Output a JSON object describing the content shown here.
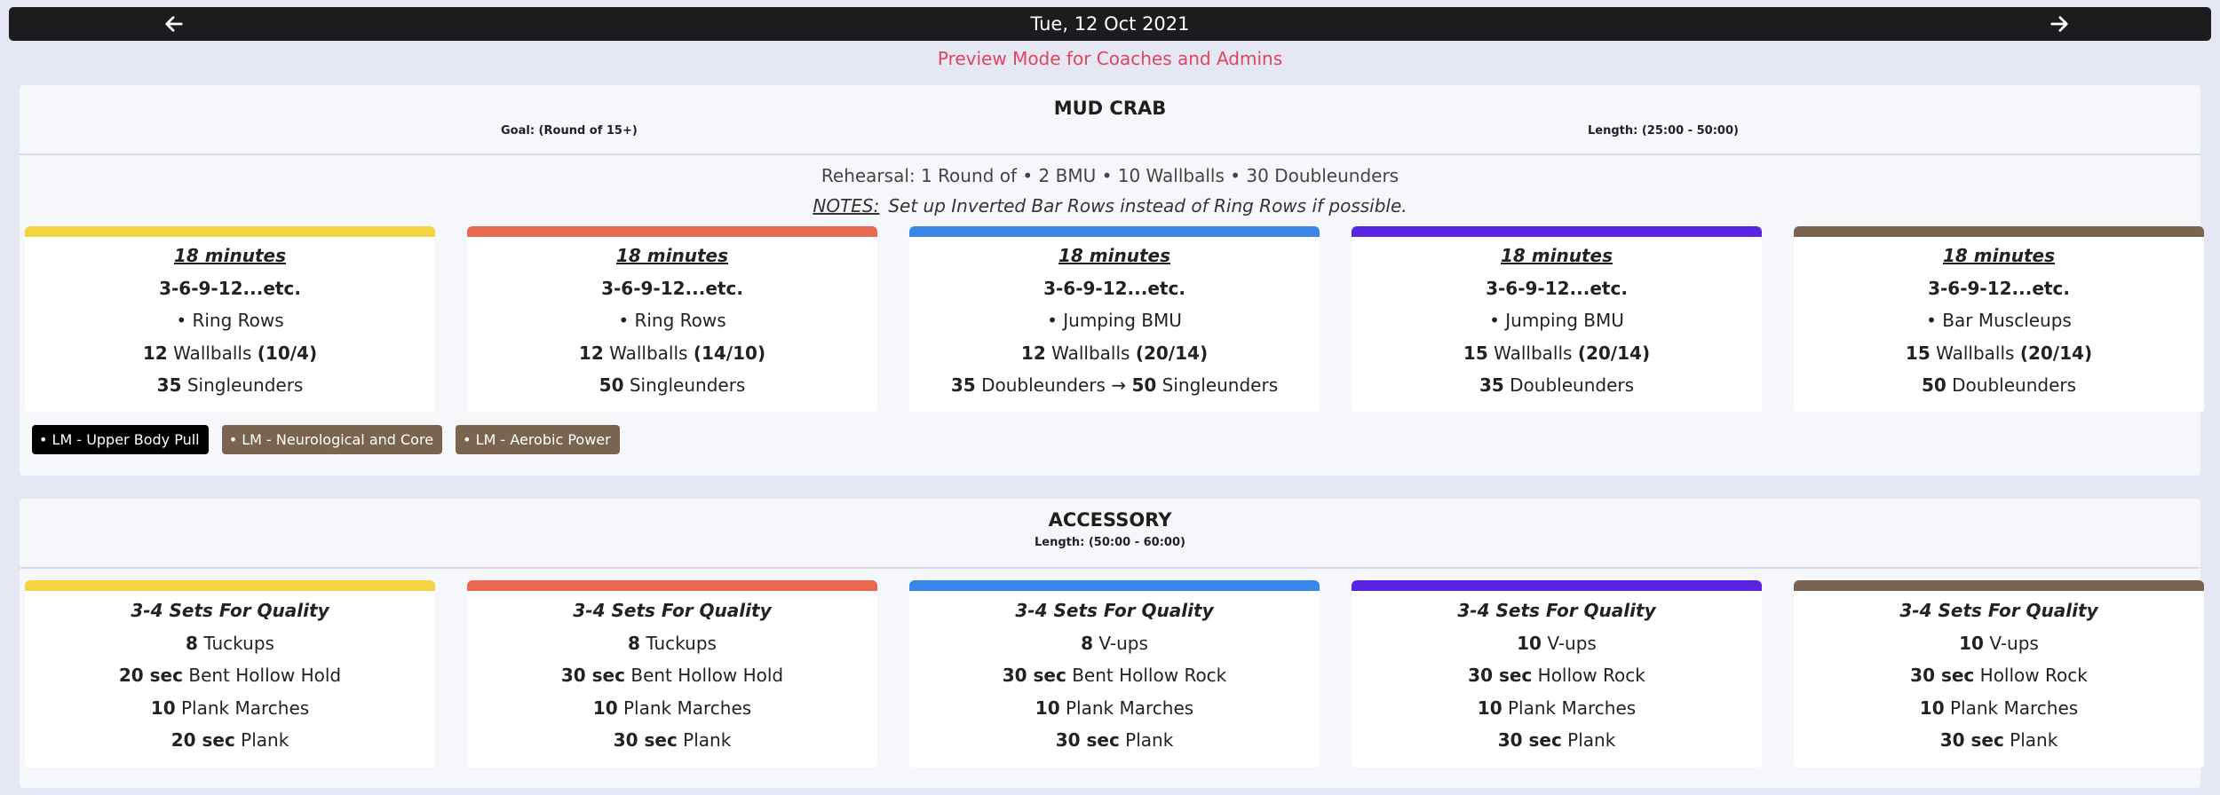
{
  "header": {
    "date": "Tue, 12 Oct 2021",
    "prev_icon": "arrow-left-icon",
    "next_icon": "arrow-right-icon",
    "preview_text": "Preview Mode for Coaches and Admins"
  },
  "colors": {
    "yellow": "#f5d442",
    "red": "#e8694e",
    "blue": "#3b87e8",
    "purple": "#5a24e3",
    "brown": "#7a6450",
    "tag_black": "#000000",
    "preview": "#e0455f"
  },
  "mud_crab": {
    "title": "MUD CRAB",
    "goal": "Goal: (Round of 15+)",
    "length": "Length: (25:00 - 50:00)",
    "rehearsal": {
      "prefix": "Rehearsal: 1 Round of",
      "sep": "•",
      "items": [
        {
          "num": "2",
          "name": "BMU"
        },
        {
          "num": "10",
          "name": "Wallballs"
        },
        {
          "num": "30",
          "name": "Doubleunders"
        }
      ]
    },
    "notes_label": "NOTES:",
    "notes_text": "Set up Inverted Bar Rows instead of Ring Rows if possible.",
    "cards": [
      {
        "time": "18 minutes",
        "scheme": "3-6-9-12...etc.",
        "move1": "• Ring Rows",
        "wb_num": "12",
        "wb_name": "Wallballs",
        "wb_weight": "(10/4)",
        "rope_num": "35",
        "rope_name": "Singleunders"
      },
      {
        "time": "18 minutes",
        "scheme": "3-6-9-12...etc.",
        "move1": "• Ring Rows",
        "wb_num": "12",
        "wb_name": "Wallballs",
        "wb_weight": "(14/10)",
        "rope_num": "50",
        "rope_name": "Singleunders"
      },
      {
        "time": "18 minutes",
        "scheme": "3-6-9-12...etc.",
        "move1": "• Jumping BMU",
        "wb_num": "12",
        "wb_name": "Wallballs",
        "wb_weight": "(20/14)",
        "rope_num": "35",
        "rope_name": "Doubleunders",
        "rope_arrow": "→",
        "rope_num2": "50",
        "rope_name2": "Singleunders"
      },
      {
        "time": "18 minutes",
        "scheme": "3-6-9-12...etc.",
        "move1": "• Jumping BMU",
        "wb_num": "15",
        "wb_name": "Wallballs",
        "wb_weight": "(20/14)",
        "rope_num": "35",
        "rope_name": "Doubleunders"
      },
      {
        "time": "18 minutes",
        "scheme": "3-6-9-12...etc.",
        "move1": "• Bar Muscleups",
        "wb_num": "15",
        "wb_name": "Wallballs",
        "wb_weight": "(20/14)",
        "rope_num": "50",
        "rope_name": "Doubleunders"
      }
    ],
    "tags": [
      {
        "label": "• LM - Upper Body Pull",
        "color": "#000000"
      },
      {
        "label": "• LM - Neurological and Core",
        "color": "#7a6450"
      },
      {
        "label": "• LM - Aerobic Power",
        "color": "#7a6450"
      }
    ]
  },
  "accessory": {
    "title": "ACCESSORY",
    "length": "Length: (50:00 - 60:00)",
    "cards": [
      {
        "sets": "3-4 Sets For Quality",
        "l1n": "8",
        "l1t": "Tuckups",
        "l2n": "20 sec",
        "l2t": "Bent Hollow Hold",
        "l3n": "10",
        "l3t": "Plank Marches",
        "l4n": "20 sec",
        "l4t": "Plank"
      },
      {
        "sets": "3-4 Sets For Quality",
        "l1n": "8",
        "l1t": "Tuckups",
        "l2n": "30 sec",
        "l2t": "Bent Hollow Hold",
        "l3n": "10",
        "l3t": "Plank Marches",
        "l4n": "30 sec",
        "l4t": "Plank"
      },
      {
        "sets": "3-4 Sets For Quality",
        "l1n": "8",
        "l1t": "V-ups",
        "l2n": "30 sec",
        "l2t": "Bent Hollow Rock",
        "l3n": "10",
        "l3t": "Plank Marches",
        "l4n": "30 sec",
        "l4t": "Plank"
      },
      {
        "sets": "3-4 Sets For Quality",
        "l1n": "10",
        "l1t": "V-ups",
        "l2n": "30 sec",
        "l2t": "Hollow Rock",
        "l3n": "10",
        "l3t": "Plank Marches",
        "l4n": "30 sec",
        "l4t": "Plank"
      },
      {
        "sets": "3-4 Sets For Quality",
        "l1n": "10",
        "l1t": "V-ups",
        "l2n": "30 sec",
        "l2t": "Hollow Rock",
        "l3n": "10",
        "l3t": "Plank Marches",
        "l4n": "30 sec",
        "l4t": "Plank"
      }
    ]
  }
}
